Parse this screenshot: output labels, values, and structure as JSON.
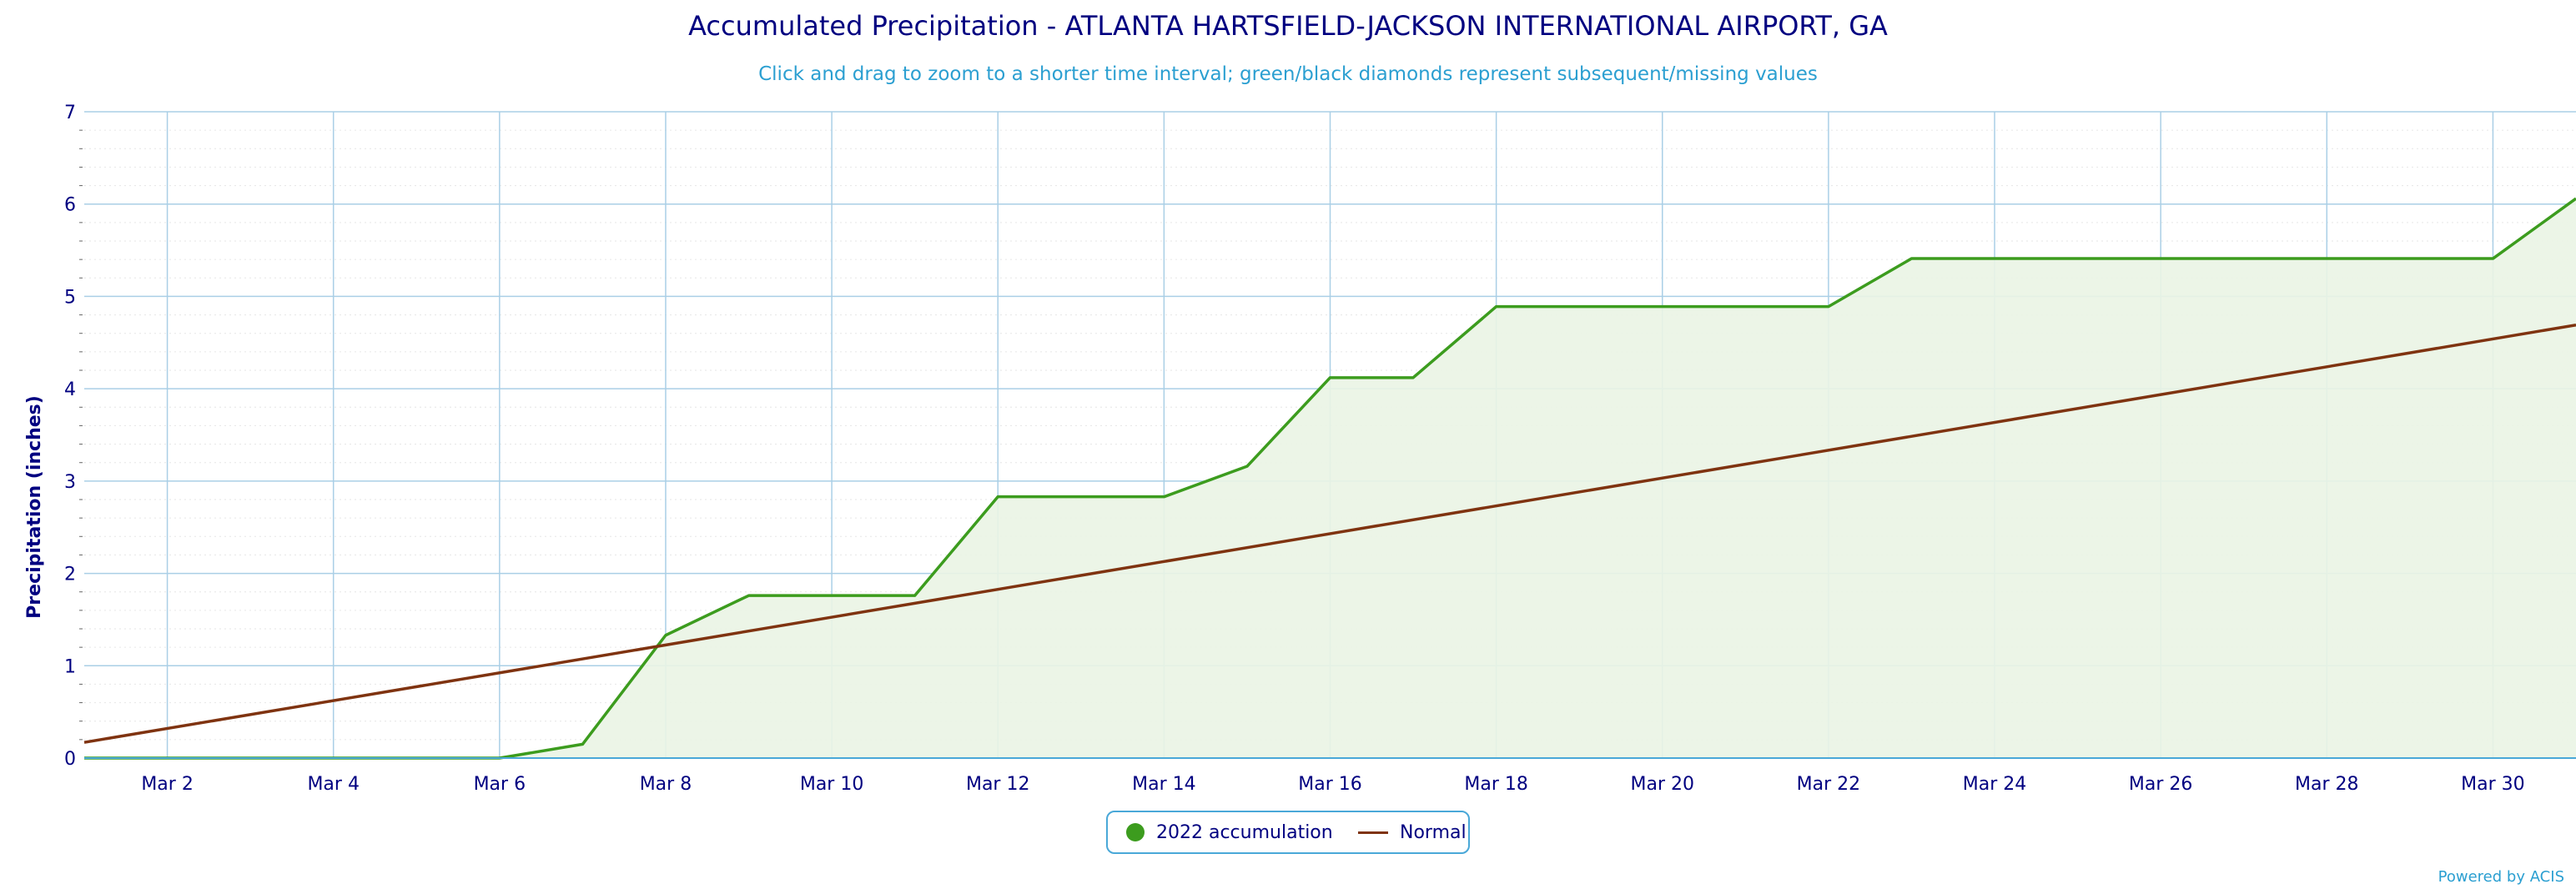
{
  "title": "Accumulated Precipitation - ATLANTA HARTSFIELD-JACKSON INTERNATIONAL AIRPORT, GA",
  "subtitle": "Click and drag to zoom to a shorter time interval; green/black diamonds represent subsequent/missing values",
  "credit": "Powered by ACIS",
  "colors": {
    "accumulation": "#3c9c1e",
    "accumulation_fill": "#eaf4e4",
    "normal": "#7f3310",
    "grid": "#aacfe6",
    "axis_text": "#000080"
  },
  "chart_data": {
    "type": "line",
    "xlabel": "",
    "ylabel": "Precipitation (inches)",
    "xlim": [
      1,
      31
    ],
    "ylim": [
      0,
      7
    ],
    "yticks": [
      0,
      1,
      2,
      3,
      4,
      5,
      6,
      7
    ],
    "xticks": [
      2,
      4,
      6,
      8,
      10,
      12,
      14,
      16,
      18,
      20,
      22,
      24,
      26,
      28,
      30
    ],
    "xtick_labels": [
      "Mar 2",
      "Mar 4",
      "Mar 6",
      "Mar 8",
      "Mar 10",
      "Mar 12",
      "Mar 14",
      "Mar 16",
      "Mar 18",
      "Mar 20",
      "Mar 22",
      "Mar 24",
      "Mar 26",
      "Mar 28",
      "Mar 30"
    ],
    "grid": true,
    "legend_position": "bottom-center",
    "series": [
      {
        "name": "2022 accumulation",
        "style": "area",
        "x": [
          1,
          2,
          3,
          4,
          5,
          6,
          7,
          8,
          9,
          10,
          11,
          12,
          13,
          14,
          15,
          16,
          17,
          18,
          19,
          20,
          21,
          22,
          23,
          24,
          25,
          26,
          27,
          28,
          29,
          30,
          31
        ],
        "y": [
          0.0,
          0.0,
          0.0,
          0.0,
          0.0,
          0.0,
          0.15,
          1.33,
          1.76,
          1.76,
          1.76,
          2.83,
          2.83,
          2.83,
          3.16,
          4.12,
          4.12,
          4.89,
          4.89,
          4.89,
          4.89,
          4.89,
          5.41,
          5.41,
          5.41,
          5.41,
          5.41,
          5.41,
          5.41,
          5.41,
          6.06
        ]
      },
      {
        "name": "Normal",
        "style": "line",
        "x": [
          1,
          31
        ],
        "y": [
          0.17,
          4.69
        ]
      }
    ]
  }
}
